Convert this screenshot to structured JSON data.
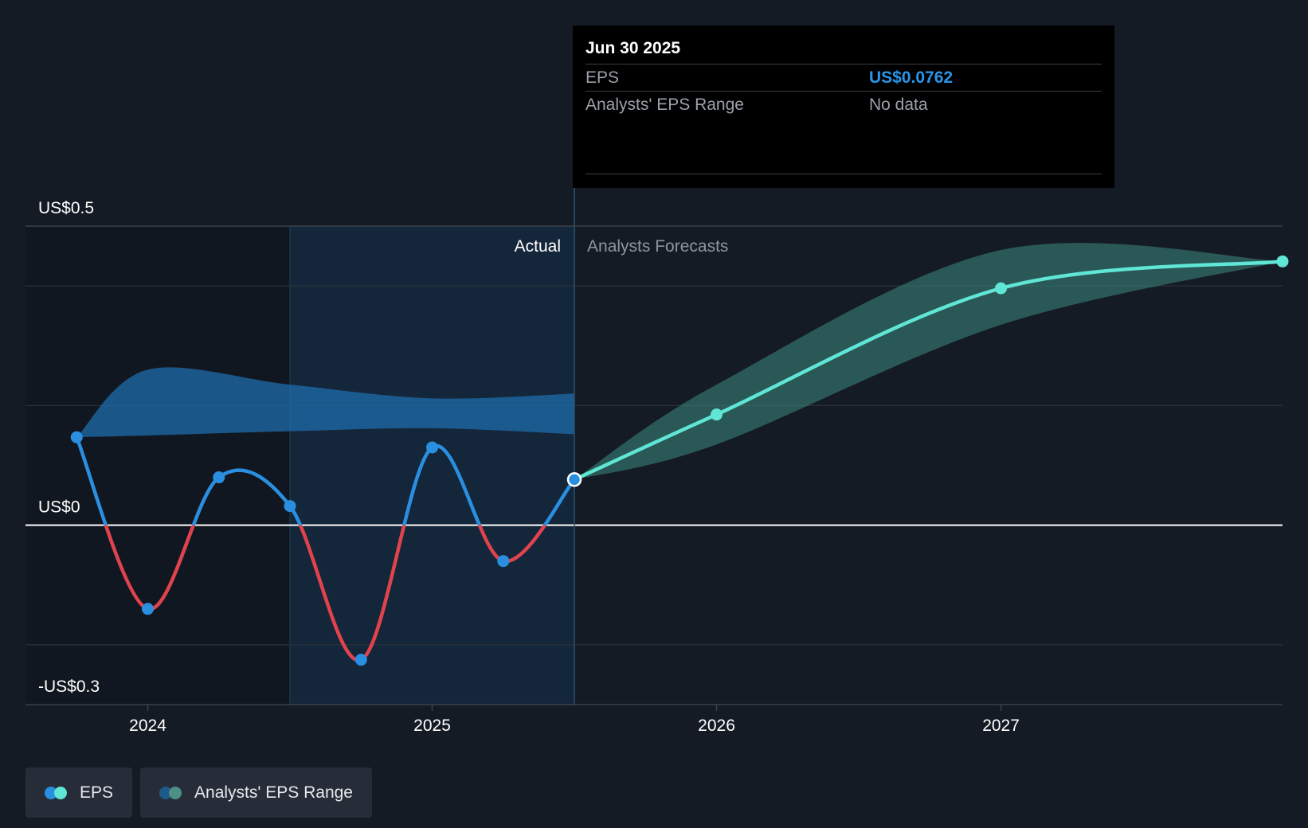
{
  "colors": {
    "background": "#151b24",
    "eps_positive": "#2a8fe0",
    "eps_negative": "#e0434d",
    "forecast": "#5fe6d4",
    "actual_band": "#1f6fae",
    "forecast_band": "#3d8a82"
  },
  "tooltip": {
    "date": "Jun 30 2025",
    "eps_label": "EPS",
    "eps_value": "US$0.0762",
    "range_label": "Analysts' EPS Range",
    "range_value": "No data"
  },
  "legend": {
    "eps_label": "EPS",
    "range_label": "Analysts' EPS Range"
  },
  "chart_data": {
    "type": "line",
    "title": "",
    "xlabel": "",
    "ylabel": "",
    "xlim": [
      2023.57,
      2027.99
    ],
    "ylim": [
      -0.3,
      0.5
    ],
    "y_tick_labels": [
      {
        "value": 0.5,
        "label": "US$0.5"
      },
      {
        "value": 0.0,
        "label": "US$0"
      },
      {
        "value": -0.3,
        "label": "-US$0.3"
      }
    ],
    "gridlines": [
      0.4,
      0.2,
      -0.2
    ],
    "x_ticks": [
      {
        "value": 2024,
        "label": "2024"
      },
      {
        "value": 2025,
        "label": "2025"
      },
      {
        "value": 2026,
        "label": "2026"
      },
      {
        "value": 2027,
        "label": "2027"
      }
    ],
    "actual_label": "Actual",
    "forecast_label": "Analysts Forecasts",
    "actual_start": 2024.5,
    "divider": 2025.5,
    "series": [
      {
        "name": "EPS",
        "kind": "actual",
        "points": [
          {
            "x": 2023.75,
            "y": 0.147
          },
          {
            "x": 2024.0,
            "y": -0.14
          },
          {
            "x": 2024.25,
            "y": 0.08
          },
          {
            "x": 2024.5,
            "y": 0.032
          },
          {
            "x": 2024.75,
            "y": -0.225
          },
          {
            "x": 2025.0,
            "y": 0.13
          },
          {
            "x": 2025.25,
            "y": -0.06
          },
          {
            "x": 2025.5,
            "y": 0.0762
          }
        ]
      },
      {
        "name": "EPS Forecast",
        "kind": "forecast",
        "points": [
          {
            "x": 2025.5,
            "y": 0.0762
          },
          {
            "x": 2026.0,
            "y": 0.185
          },
          {
            "x": 2027.0,
            "y": 0.396
          },
          {
            "x": 2027.99,
            "y": 0.441
          }
        ]
      }
    ],
    "ranges": [
      {
        "name": "Analysts' EPS Range (past)",
        "kind": "actual",
        "x": [
          2023.75,
          2024.0,
          2024.5,
          2025.0,
          2025.5
        ],
        "low": [
          0.147,
          0.15,
          0.157,
          0.162,
          0.152
        ],
        "high": [
          0.147,
          0.26,
          0.235,
          0.212,
          0.22
        ]
      },
      {
        "name": "Analysts' EPS Range (forecast)",
        "kind": "forecast",
        "x": [
          2025.5,
          2026.0,
          2027.0,
          2027.99
        ],
        "low": [
          0.076,
          0.135,
          0.335,
          0.441
        ],
        "high": [
          0.076,
          0.235,
          0.46,
          0.441
        ]
      }
    ]
  }
}
